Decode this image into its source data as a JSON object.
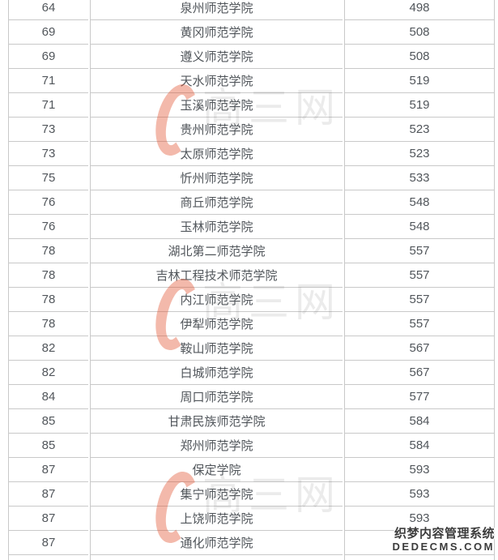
{
  "colors": {
    "border": "#c9c9c9",
    "cell_text": "#51565b",
    "wm_red": "#e0512f66",
    "wm_gray": "#78787826",
    "cms_text": "#3c3c3c"
  },
  "table": {
    "rows": [
      {
        "rank": "64",
        "name": "泉州师范学院",
        "score": "498"
      },
      {
        "rank": "69",
        "name": "黄冈师范学院",
        "score": "508"
      },
      {
        "rank": "69",
        "name": "遵义师范学院",
        "score": "508"
      },
      {
        "rank": "71",
        "name": "天水师范学院",
        "score": "519"
      },
      {
        "rank": "71",
        "name": "玉溪师范学院",
        "score": "519"
      },
      {
        "rank": "73",
        "name": "贵州师范学院",
        "score": "523"
      },
      {
        "rank": "73",
        "name": "太原师范学院",
        "score": "523"
      },
      {
        "rank": "75",
        "name": "忻州师范学院",
        "score": "533"
      },
      {
        "rank": "76",
        "name": "商丘师范学院",
        "score": "548"
      },
      {
        "rank": "76",
        "name": "玉林师范学院",
        "score": "548"
      },
      {
        "rank": "78",
        "name": "湖北第二师范学院",
        "score": "557"
      },
      {
        "rank": "78",
        "name": "吉林工程技术师范学院",
        "score": "557"
      },
      {
        "rank": "78",
        "name": "内江师范学院",
        "score": "557"
      },
      {
        "rank": "78",
        "name": "伊犁师范学院",
        "score": "557"
      },
      {
        "rank": "82",
        "name": "鞍山师范学院",
        "score": "567"
      },
      {
        "rank": "82",
        "name": "白城师范学院",
        "score": "567"
      },
      {
        "rank": "84",
        "name": "周口师范学院",
        "score": "577"
      },
      {
        "rank": "85",
        "name": "甘肃民族师范学院",
        "score": "584"
      },
      {
        "rank": "85",
        "name": "郑州师范学院",
        "score": "584"
      },
      {
        "rank": "87",
        "name": "保定学院",
        "score": "593"
      },
      {
        "rank": "87",
        "name": "集宁师范学院",
        "score": "593"
      },
      {
        "rank": "87",
        "name": "上饶师范学院",
        "score": "593"
      },
      {
        "rank": "87",
        "name": "通化师范学院",
        "score": ""
      }
    ]
  },
  "watermarks": {
    "site_logo_text": "高三网",
    "cms_line1": "织梦内容管理系统",
    "cms_line2": "DEDECMS.COM"
  }
}
